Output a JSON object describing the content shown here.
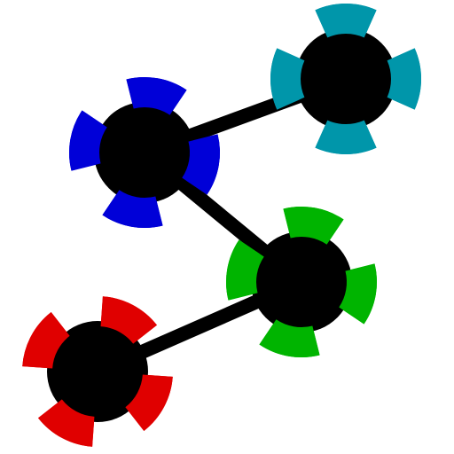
{
  "diagram": {
    "background": "#ffffff",
    "link_color": "#000000",
    "hub_color": "#000000",
    "nodes": [
      {
        "id": "teal-node",
        "color": "#0096aa"
      },
      {
        "id": "blue-node",
        "color": "#0000d8"
      },
      {
        "id": "green-node",
        "color": "#00b400"
      },
      {
        "id": "red-node",
        "color": "#e00000"
      }
    ],
    "links": [
      {
        "from": "blue-node",
        "to": "teal-node"
      },
      {
        "from": "blue-node",
        "to": "green-node"
      },
      {
        "from": "green-node",
        "to": "red-node"
      }
    ]
  }
}
